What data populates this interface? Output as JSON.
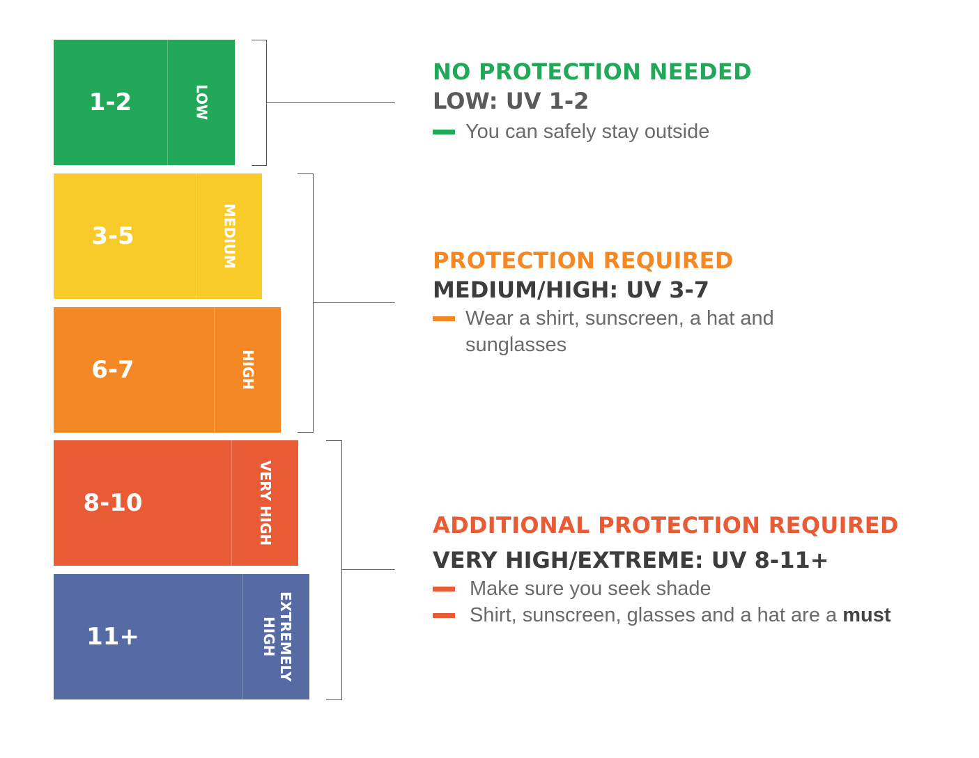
{
  "colors": {
    "low": "#21a858",
    "medium": "#f9cb2a",
    "high": "#f48825",
    "very_high": "#e95b35",
    "extreme": "#566ba3",
    "text_dark": "#3d3d3d",
    "text_body": "#6a6a6a"
  },
  "levels": [
    {
      "range": "1-2",
      "label": "LOW"
    },
    {
      "range": "3-5",
      "label": "MEDIUM"
    },
    {
      "range": "6-7",
      "label": "HIGH"
    },
    {
      "range": "8-10",
      "label": "VERY HIGH"
    },
    {
      "range": "11+",
      "label": "EXTREMELY HIGH"
    }
  ],
  "groups": [
    {
      "title": "NO PROTECTION NEEDED",
      "subtitle": "LOW: UV 1-2",
      "bullets": [
        "You can safely stay outside"
      ]
    },
    {
      "title": "PROTECTION REQUIRED",
      "subtitle": "MEDIUM/HIGH: UV 3-7",
      "bullets": [
        "Wear a shirt, sunscreen, a hat and sunglasses"
      ]
    },
    {
      "title": "ADDITIONAL PROTECTION REQUIRED",
      "subtitle": "VERY HIGH/EXTREME: UV 8-11+",
      "bullets": [
        "Make sure you seek shade",
        "Shirt, sunscreen, glasses and a hat are a "
      ],
      "emphasis": "must"
    }
  ]
}
